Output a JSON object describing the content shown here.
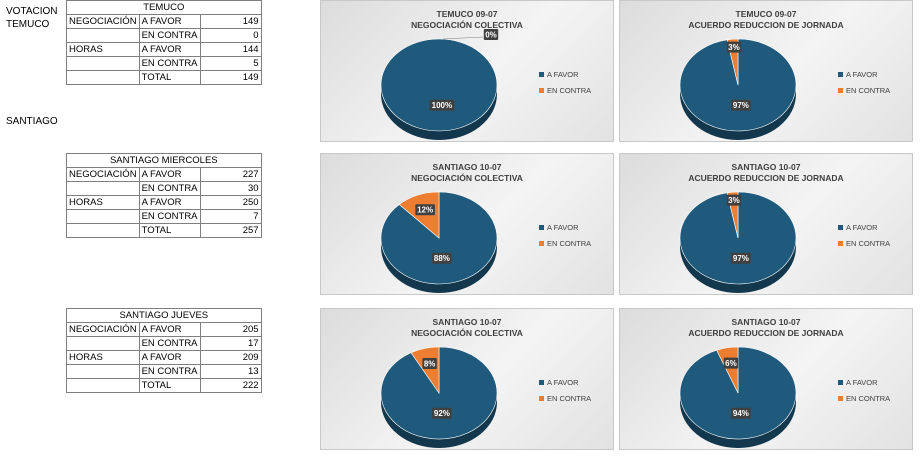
{
  "labels": {
    "votacion": "VOTACION",
    "temuco": "TEMUCO",
    "santiago": "SANTIAGO"
  },
  "tables": [
    {
      "title": "TEMUCO",
      "rows": [
        [
          "NEGOCIACIÓN",
          "A FAVOR",
          "149"
        ],
        [
          "",
          "EN CONTRA",
          "0"
        ],
        [
          "HORAS",
          "A FAVOR",
          "144"
        ],
        [
          "",
          "EN CONTRA",
          "5"
        ],
        [
          "",
          "TOTAL",
          "149"
        ]
      ]
    },
    {
      "title": "SANTIAGO MIERCOLES",
      "rows": [
        [
          "NEGOCIACIÓN",
          "A FAVOR",
          "227"
        ],
        [
          "",
          "EN CONTRA",
          "30"
        ],
        [
          "HORAS",
          "A FAVOR",
          "250"
        ],
        [
          "",
          "EN CONTRA",
          "7"
        ],
        [
          "",
          "TOTAL",
          "257"
        ]
      ]
    },
    {
      "title": "SANTIAGO JUEVES",
      "rows": [
        [
          "NEGOCIACIÓN",
          "A FAVOR",
          "205"
        ],
        [
          "",
          "EN CONTRA",
          "17"
        ],
        [
          "HORAS",
          "A FAVOR",
          "209"
        ],
        [
          "",
          "EN CONTRA",
          "13"
        ],
        [
          "",
          "TOTAL",
          "222"
        ]
      ]
    }
  ],
  "colors": {
    "favor": "#1f5a7c",
    "contra": "#ed7d31"
  },
  "chart_data": [
    {
      "type": "pie",
      "title": [
        "TEMUCO 09-07",
        "NEGOCIACIÓN COLECTIVA"
      ],
      "categories": [
        "A FAVOR",
        "EN CONTRA"
      ],
      "values": [
        100,
        0
      ],
      "labels": [
        "100%",
        "0%"
      ],
      "legend": "right"
    },
    {
      "type": "pie",
      "title": [
        "TEMUCO 09-07",
        "ACUERDO REDUCCION DE JORNADA"
      ],
      "categories": [
        "A FAVOR",
        "EN CONTRA"
      ],
      "values": [
        97,
        3
      ],
      "labels": [
        "97%",
        "3%"
      ],
      "legend": "right"
    },
    {
      "type": "pie",
      "title": [
        "SANTIAGO 10-07",
        "NEGOCIACIÓN COLECTIVA"
      ],
      "categories": [
        "A FAVOR",
        "EN CONTRA"
      ],
      "values": [
        88,
        12
      ],
      "labels": [
        "88%",
        "12%"
      ],
      "legend": "right"
    },
    {
      "type": "pie",
      "title": [
        "SANTIAGO 10-07",
        "ACUERDO REDUCCION DE JORNADA"
      ],
      "categories": [
        "A FAVOR",
        "EN CONTRA"
      ],
      "values": [
        97,
        3
      ],
      "labels": [
        "97%",
        "3%"
      ],
      "legend": "right"
    },
    {
      "type": "pie",
      "title": [
        "SANTIAGO 10-07",
        "NEGOCIACIÓN COLECTIVA"
      ],
      "categories": [
        "A FAVOR",
        "EN CONTRA"
      ],
      "values": [
        92,
        8
      ],
      "labels": [
        "92%",
        "8%"
      ],
      "legend": "right"
    },
    {
      "type": "pie",
      "title": [
        "SANTIAGO 10-07",
        "ACUERDO REDUCCION DE JORNADA"
      ],
      "categories": [
        "A FAVOR",
        "EN CONTRA"
      ],
      "values": [
        94,
        6
      ],
      "labels": [
        "94%",
        "6%"
      ],
      "legend": "right"
    }
  ]
}
